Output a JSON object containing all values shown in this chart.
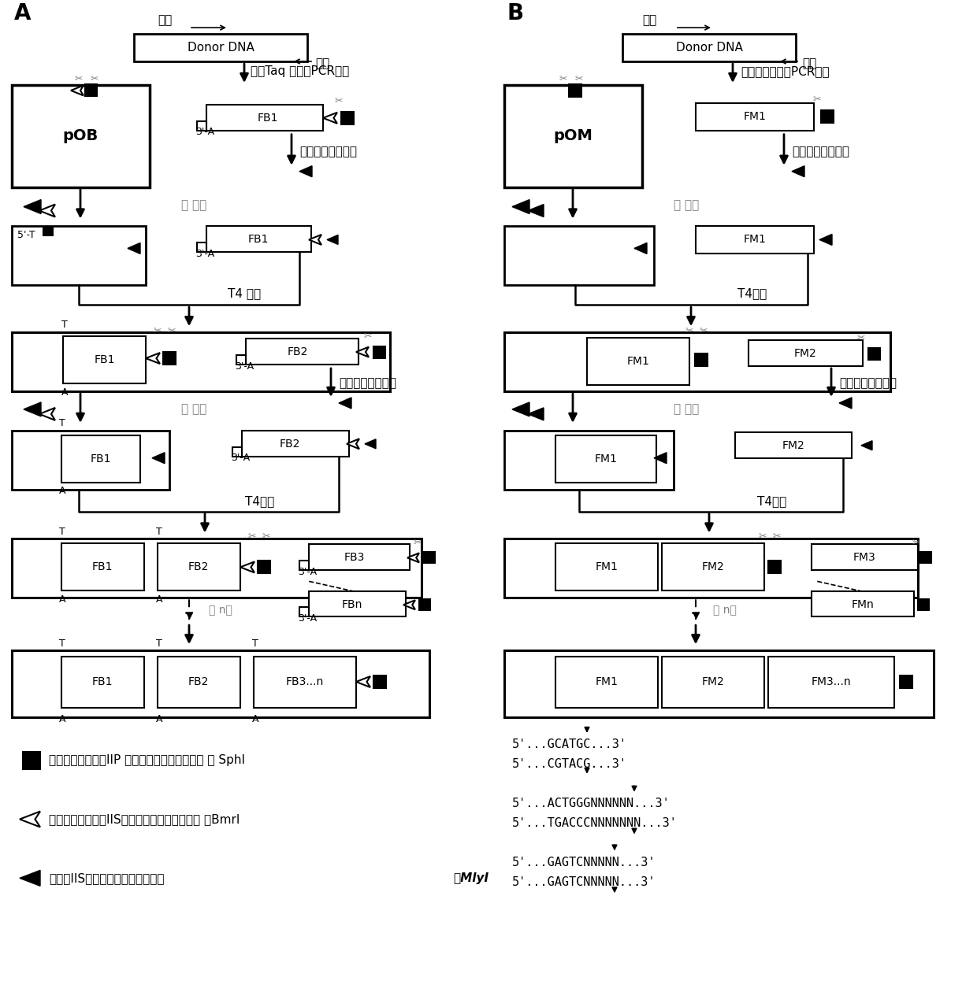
{
  "bg_color": "#ffffff",
  "label_A": "A",
  "label_B": "B",
  "text_primer": "引物",
  "text_donor_dna": "Donor DNA",
  "text_pcr_A": "使用Taq 聚合酶PCR扩增",
  "text_pcr_B": "用高保真聚合酶PCR扩增",
  "text_restriction": "限制性内切酶消化",
  "text_T4A": "T4 连接",
  "text_T4B": "T4连接",
  "text_round1": "第 一轮",
  "text_round2": "第 二轮",
  "text_roundn": "第 n轮",
  "text_pOB": "pOB",
  "text_pOM": "pOM",
  "text_FB1": "FB1",
  "text_FB2": "FB2",
  "text_FB3": "FB3",
  "text_FBn": "FBn",
  "text_FB3n": "FB3...n",
  "text_FM1": "FM1",
  "text_FM2": "FM2",
  "text_FM3": "FM3",
  "text_FMn": "FMn",
  "text_FM3n": "FM3...n",
  "legend_sq1": "多碱基粘性末端的IIP 型限制性内切酶识别位点 如 SphI",
  "legend_sq2": "单碱基粘性末端的IIS型限制性内切酶识别位点 如BmrI",
  "legend_sq3": "平末端IIS型限制性内切酶识别位点",
  "seq1_line1": "5'...GCATGC...3'",
  "seq1_line2": "5'...CGTACG...3'",
  "seq2_line1": "5'...ACTGGGNNNNNN...3'",
  "seq2_line2": "5'...TGACCCNNNNNNN...3'",
  "seq3_example": "如MlyI",
  "seq3_line1": "5'...GAGTCNNNNN...3'",
  "seq3_line2": "5'...GAGTCNNNNN...3'"
}
